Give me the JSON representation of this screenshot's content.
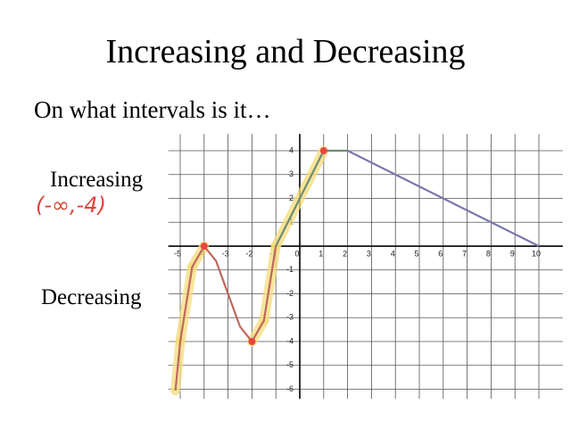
{
  "header": {
    "title": "Increasing and Decreasing"
  },
  "question": "On what intervals is it…",
  "labels": {
    "increasing": "Increasing",
    "decreasing": "Decreasing"
  },
  "annotation": "(-∞,-4)",
  "graph": {
    "xlim": [
      -5.5,
      11
    ],
    "ylim": [
      -6.4,
      4.7
    ],
    "xticks": [
      -5,
      -4,
      -3,
      -2,
      -1,
      0,
      1,
      2,
      3,
      4,
      5,
      6,
      7,
      8,
      9,
      10
    ],
    "yticks": [
      -6,
      -5,
      -4,
      -3,
      -2,
      -1,
      1,
      2,
      3,
      4
    ],
    "grid": true,
    "series": [
      {
        "color": "#c0675c",
        "x": [
          -5.2,
          -5,
          -4.5,
          -4,
          -3.5,
          -3,
          -2.5,
          -2,
          -1.5,
          -1
        ],
        "y": [
          -6.05,
          -4,
          -0.875,
          0,
          -0.625,
          -2,
          -3.375,
          -4,
          -3.125,
          0
        ]
      },
      {
        "color": "#6f8c73",
        "x": [
          -1,
          1,
          2
        ],
        "y": [
          0,
          4,
          4
        ]
      },
      {
        "color": "#7b79aa",
        "x": [
          2,
          10
        ],
        "y": [
          4,
          0
        ]
      }
    ],
    "points": {
      "color": "#e8463f",
      "x": [
        -4,
        -2,
        1
      ],
      "y": [
        0,
        -4,
        4
      ]
    }
  }
}
